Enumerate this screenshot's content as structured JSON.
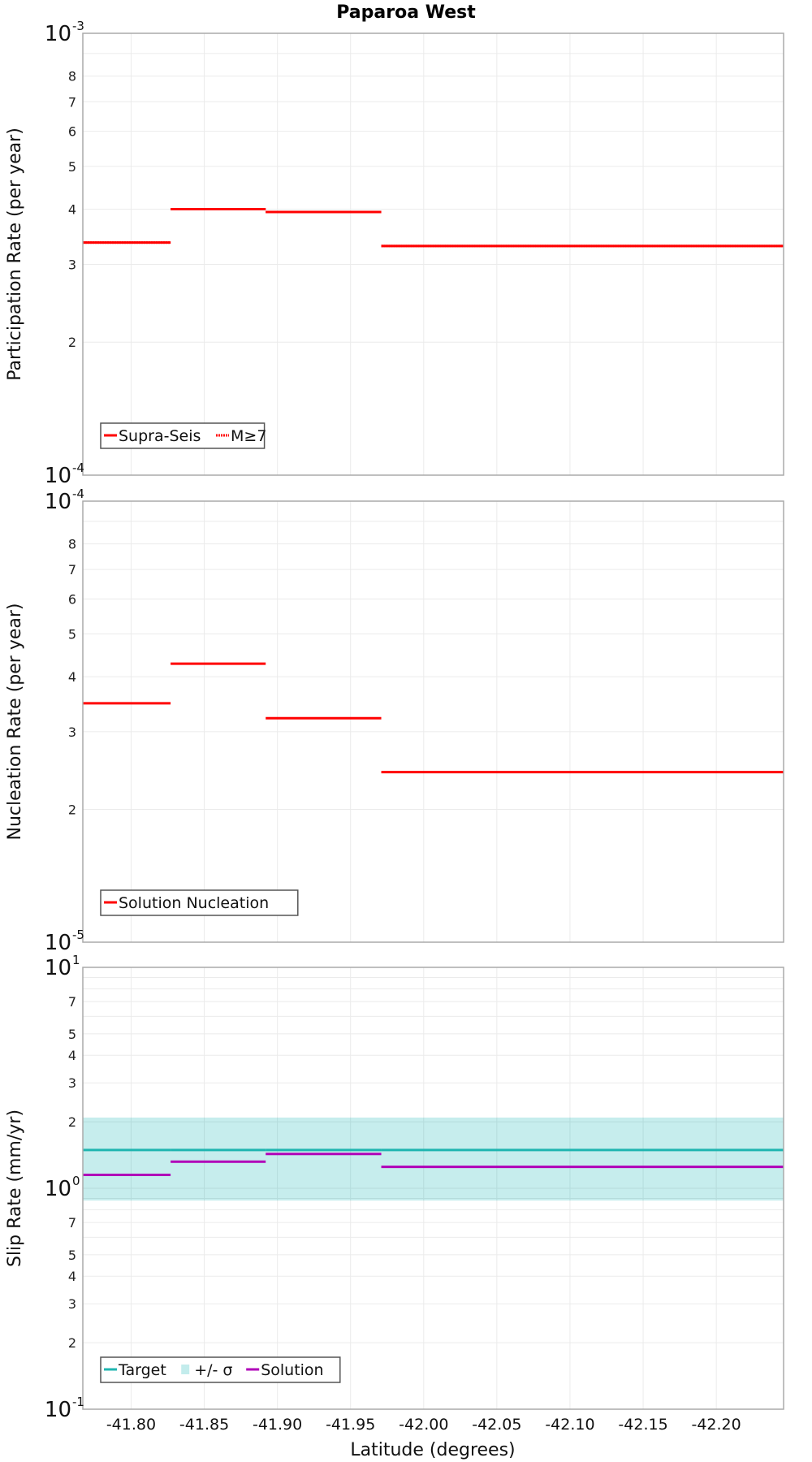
{
  "chart_data": {
    "title": "Paparoa West",
    "type": "line",
    "layout": "3 stacked panels sharing x-axis",
    "xlabel": "Latitude (degrees)",
    "xlim": [
      -41.767,
      -42.246
    ],
    "xticks": [
      -41.8,
      -41.85,
      -41.9,
      -41.95,
      -42.0,
      -42.05,
      -42.1,
      -42.15,
      -42.2
    ],
    "xtick_labels": [
      "-41.80",
      "-41.85",
      "-41.90",
      "-41.95",
      "-42.00",
      "-42.05",
      "-42.10",
      "-42.15",
      "-42.20"
    ],
    "grid": true,
    "segment_boundaries": [
      -41.767,
      -41.827,
      -41.892,
      -41.971,
      -42.246
    ],
    "panels": [
      {
        "id": "participation",
        "ylabel": "Participation Rate (per year)",
        "yscale": "log",
        "ylim": [
          0.0001,
          0.001
        ],
        "major_ticks": [
          {
            "base": "10",
            "exp": "-3"
          },
          {
            "base": "10",
            "exp": "-4"
          }
        ],
        "minor_tick_labels": [
          "8",
          "7",
          "6",
          "5",
          "4",
          "3",
          "2"
        ],
        "minor_tick_values": [
          0.0008,
          0.0007,
          0.0006,
          0.0005,
          0.0004,
          0.0003,
          0.0002
        ],
        "legend": [
          {
            "label": "Supra-Seis",
            "color": "#ff0000",
            "style": "solid"
          },
          {
            "label": "M≥7",
            "color": "#ff0000",
            "style": "dotted"
          }
        ],
        "series": [
          {
            "name": "Supra-Seis",
            "color": "#ff0000",
            "style": "solid",
            "values": [
              0.000336,
              0.0004,
              0.000394,
              0.00033
            ]
          },
          {
            "name": "M≥7",
            "color": "#ff0000",
            "style": "dotted",
            "values": [
              0.000336,
              0.0004,
              0.000394,
              0.00033
            ]
          }
        ]
      },
      {
        "id": "nucleation",
        "ylabel": "Nucleation Rate (per year)",
        "yscale": "log",
        "ylim": [
          1e-05,
          0.0001
        ],
        "major_ticks": [
          {
            "base": "10",
            "exp": "-4"
          },
          {
            "base": "10",
            "exp": "-5"
          }
        ],
        "minor_tick_labels": [
          "8",
          "7",
          "6",
          "5",
          "4",
          "3",
          "2"
        ],
        "minor_tick_values": [
          8e-05,
          7e-05,
          6e-05,
          5e-05,
          4e-05,
          3e-05,
          2e-05
        ],
        "legend": [
          {
            "label": "Solution Nucleation",
            "color": "#ff0000",
            "style": "solid"
          }
        ],
        "series": [
          {
            "name": "Solution Nucleation",
            "color": "#ff0000",
            "style": "solid",
            "values": [
              3.48e-05,
              4.28e-05,
              3.22e-05,
              2.43e-05
            ]
          }
        ]
      },
      {
        "id": "slip",
        "ylabel": "Slip Rate (mm/yr)",
        "yscale": "log",
        "ylim": [
          0.1,
          10
        ],
        "major_ticks": [
          {
            "base": "10",
            "exp": "1"
          },
          {
            "base": "10",
            "exp": "0"
          },
          {
            "base": "10",
            "exp": "-1"
          }
        ],
        "minor_tick_labels": [
          "7",
          "5",
          "4",
          "3",
          "2",
          "7",
          "5",
          "4",
          "3",
          "2"
        ],
        "minor_tick_values": [
          7,
          5,
          4,
          3,
          2,
          0.7,
          0.5,
          0.4,
          0.3,
          0.2
        ],
        "legend": [
          {
            "label": "Target",
            "color": "#1fb5b0",
            "style": "solid"
          },
          {
            "label": "+/- σ",
            "color": "#c3ecec",
            "style": "band"
          },
          {
            "label": "Solution",
            "color": "#b000b8",
            "style": "solid"
          }
        ],
        "band": {
          "name": "+/- σ",
          "color": "#c3ecec",
          "lower": 0.88,
          "upper": 2.09
        },
        "series": [
          {
            "name": "Target",
            "color": "#1fb5b0",
            "style": "solid",
            "values": [
              1.49,
              1.49,
              1.49,
              1.49
            ]
          },
          {
            "name": "Solution",
            "color": "#b000b8",
            "style": "solid",
            "values": [
              1.15,
              1.32,
              1.43,
              1.25
            ]
          }
        ]
      }
    ]
  }
}
